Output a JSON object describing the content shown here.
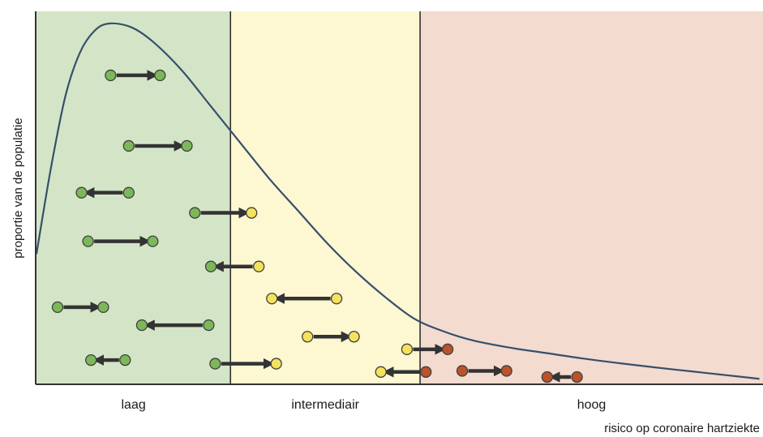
{
  "y_axis_label": "proportie van de populatie",
  "x_axis_label": "risico op coronaire hartziekte",
  "colors": {
    "zone_low": "#d4e5c7",
    "zone_mid": "#fdf7d2",
    "zone_high": "#f3dbd0",
    "curve": "#35506a",
    "axis": "#333333",
    "arrow": "#333333",
    "dot_green": "#7cb85a",
    "dot_yellow": "#f4e25c",
    "dot_red": "#b9532c",
    "dot_stroke": "#3f3f3f"
  },
  "zones": [
    {
      "name": "zone-low",
      "label": "laag",
      "from": 0,
      "to": 2.67,
      "color_key": "zone_low"
    },
    {
      "name": "zone-intermediate",
      "label": "intermediair",
      "from": 2.67,
      "to": 5.28,
      "color_key": "zone_mid"
    },
    {
      "name": "zone-high",
      "label": "hoog",
      "from": 5.28,
      "to": 10,
      "color_key": "zone_high"
    }
  ],
  "distribution_curve": [
    [
      0,
      0.36
    ],
    [
      0.2,
      0.6
    ],
    [
      0.4,
      0.8
    ],
    [
      0.6,
      0.92
    ],
    [
      0.8,
      0.98
    ],
    [
      1.0,
      1.0
    ],
    [
      1.3,
      0.99
    ],
    [
      1.6,
      0.95
    ],
    [
      2.0,
      0.87
    ],
    [
      2.4,
      0.77
    ],
    [
      2.8,
      0.67
    ],
    [
      3.2,
      0.57
    ],
    [
      3.6,
      0.48
    ],
    [
      4.0,
      0.39
    ],
    [
      4.4,
      0.31
    ],
    [
      4.8,
      0.24
    ],
    [
      5.2,
      0.18
    ],
    [
      5.6,
      0.145
    ],
    [
      6.0,
      0.12
    ],
    [
      6.5,
      0.1
    ],
    [
      7.0,
      0.085
    ],
    [
      7.5,
      0.07
    ],
    [
      8.0,
      0.057
    ],
    [
      8.5,
      0.045
    ],
    [
      9.0,
      0.034
    ],
    [
      9.5,
      0.023
    ],
    [
      9.95,
      0.013
    ]
  ],
  "shifts": [
    {
      "from_x": 1.02,
      "to_x": 1.7,
      "level": 0.856,
      "from_color": "green",
      "to_color": "green"
    },
    {
      "from_x": 1.27,
      "to_x": 2.07,
      "level": 0.66,
      "from_color": "green",
      "to_color": "green"
    },
    {
      "from_x": 1.27,
      "to_x": 0.62,
      "level": 0.53,
      "from_color": "green",
      "to_color": "green"
    },
    {
      "from_x": 2.18,
      "to_x": 2.96,
      "level": 0.474,
      "from_color": "green",
      "to_color": "yellow"
    },
    {
      "from_x": 0.71,
      "to_x": 1.6,
      "level": 0.395,
      "from_color": "green",
      "to_color": "green"
    },
    {
      "from_x": 3.06,
      "to_x": 2.4,
      "level": 0.325,
      "from_color": "yellow",
      "to_color": "green"
    },
    {
      "from_x": 0.29,
      "to_x": 0.92,
      "level": 0.212,
      "from_color": "green",
      "to_color": "green"
    },
    {
      "from_x": 4.13,
      "to_x": 3.24,
      "level": 0.236,
      "from_color": "yellow",
      "to_color": "yellow"
    },
    {
      "from_x": 2.37,
      "to_x": 1.45,
      "level": 0.162,
      "from_color": "green",
      "to_color": "green"
    },
    {
      "from_x": 3.73,
      "to_x": 4.37,
      "level": 0.13,
      "from_color": "yellow",
      "to_color": "yellow"
    },
    {
      "from_x": 5.1,
      "to_x": 5.66,
      "level": 0.095,
      "from_color": "yellow",
      "to_color": "red"
    },
    {
      "from_x": 1.22,
      "to_x": 0.75,
      "level": 0.065,
      "from_color": "green",
      "to_color": "green"
    },
    {
      "from_x": 2.46,
      "to_x": 3.3,
      "level": 0.055,
      "from_color": "green",
      "to_color": "yellow"
    },
    {
      "from_x": 5.36,
      "to_x": 4.74,
      "level": 0.032,
      "from_color": "red",
      "to_color": "yellow"
    },
    {
      "from_x": 5.86,
      "to_x": 6.47,
      "level": 0.035,
      "from_color": "red",
      "to_color": "red"
    },
    {
      "from_x": 7.44,
      "to_x": 7.03,
      "level": 0.018,
      "from_color": "red",
      "to_color": "red"
    }
  ]
}
